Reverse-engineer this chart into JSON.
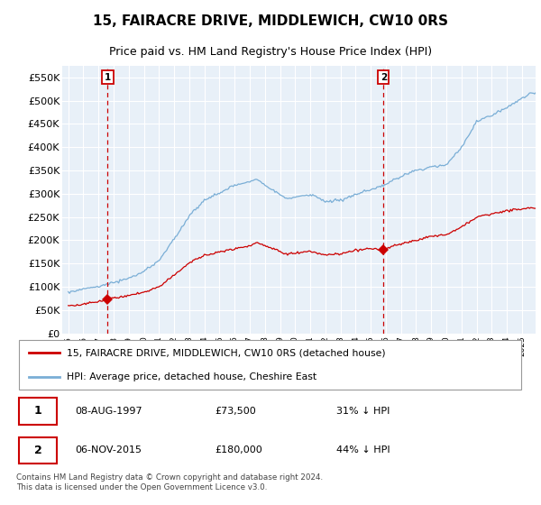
{
  "title": "15, FAIRACRE DRIVE, MIDDLEWICH, CW10 0RS",
  "subtitle": "Price paid vs. HM Land Registry's House Price Index (HPI)",
  "ylim": [
    0,
    575000
  ],
  "yticks": [
    0,
    50000,
    100000,
    150000,
    200000,
    250000,
    300000,
    350000,
    400000,
    450000,
    500000,
    550000
  ],
  "ytick_labels": [
    "£0",
    "£50K",
    "£100K",
    "£150K",
    "£200K",
    "£250K",
    "£300K",
    "£350K",
    "£400K",
    "£450K",
    "£500K",
    "£550K"
  ],
  "sale1_date": "08-AUG-1997",
  "sale1_price": 73500,
  "sale1_year": 1997.6,
  "sale2_date": "06-NOV-2015",
  "sale2_price": 180000,
  "sale2_year": 2015.84,
  "line1_label": "15, FAIRACRE DRIVE, MIDDLEWICH, CW10 0RS (detached house)",
  "line2_label": "HPI: Average price, detached house, Cheshire East",
  "line1_color": "#cc0000",
  "line2_color": "#7aaed6",
  "dashed_color": "#cc0000",
  "marker_color": "#cc0000",
  "background_color": "#e8f0f8",
  "grid_color": "#ffffff",
  "title_fontsize": 11,
  "subtitle_fontsize": 9,
  "sale1_price_str": "£73,500",
  "sale2_price_str": "£180,000",
  "sale1_pct": "31% ↓ HPI",
  "sale2_pct": "44% ↓ HPI",
  "footer": "Contains HM Land Registry data © Crown copyright and database right 2024.\nThis data is licensed under the Open Government Licence v3.0."
}
